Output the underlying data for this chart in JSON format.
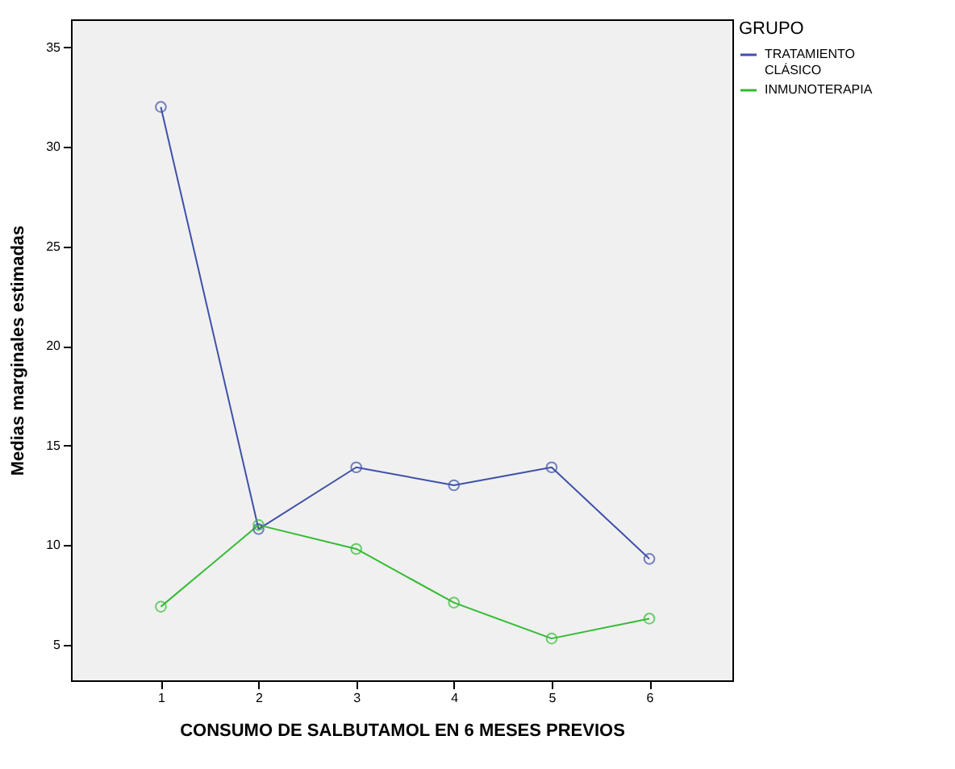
{
  "chart_data": {
    "type": "line",
    "xlabel": "CONSUMO DE SALBUTAMOL EN 6 MESES PREVIOS",
    "ylabel": "Medias marginales estimadas",
    "legend_title": "GRUPO",
    "x": [
      1,
      2,
      3,
      4,
      5,
      6
    ],
    "series": [
      {
        "name": "TRATAMIENTO CLÁSICO",
        "color": "#3f51a8",
        "values": [
          32.0,
          10.8,
          13.9,
          13.0,
          13.9,
          9.3
        ]
      },
      {
        "name": "INMUNOTERAPIA",
        "color": "#33bb33",
        "values": [
          6.9,
          11.0,
          9.8,
          7.1,
          5.3,
          6.3
        ]
      }
    ],
    "xlim": [
      0.08,
      6.85
    ],
    "xticks": [
      1,
      2,
      3,
      4,
      5,
      6
    ],
    "ylim": [
      3.2,
      36.4
    ],
    "yticks": [
      5,
      10,
      15,
      20,
      25,
      30,
      35
    ],
    "grid": false,
    "legend": "right",
    "marker": "circle",
    "line_style": "solid"
  }
}
